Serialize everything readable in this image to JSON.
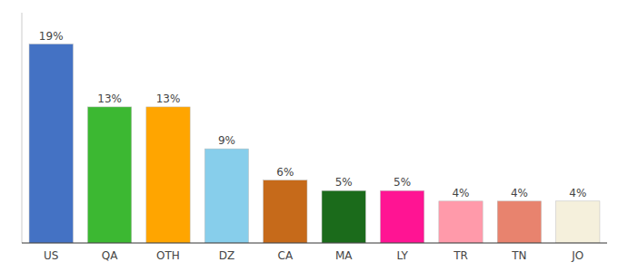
{
  "chart_data": {
    "type": "bar",
    "categories": [
      "US",
      "QA",
      "OTH",
      "DZ",
      "CA",
      "MA",
      "LY",
      "TR",
      "TN",
      "JO"
    ],
    "values": [
      19,
      13,
      13,
      9,
      6,
      5,
      5,
      4,
      4,
      4
    ],
    "value_labels": [
      "19%",
      "13%",
      "13%",
      "9%",
      "6%",
      "5%",
      "5%",
      "4%",
      "4%",
      "4%"
    ],
    "colors": [
      "#4472C4",
      "#3CB832",
      "#FFA500",
      "#87CEEB",
      "#C66A1A",
      "#1B6B1B",
      "#FF1493",
      "#FF9AAA",
      "#E8836E",
      "#F5F0DC"
    ],
    "ylim": [
      0,
      22
    ],
    "data_labels": true,
    "tick_labels": "x",
    "grid": false
  }
}
